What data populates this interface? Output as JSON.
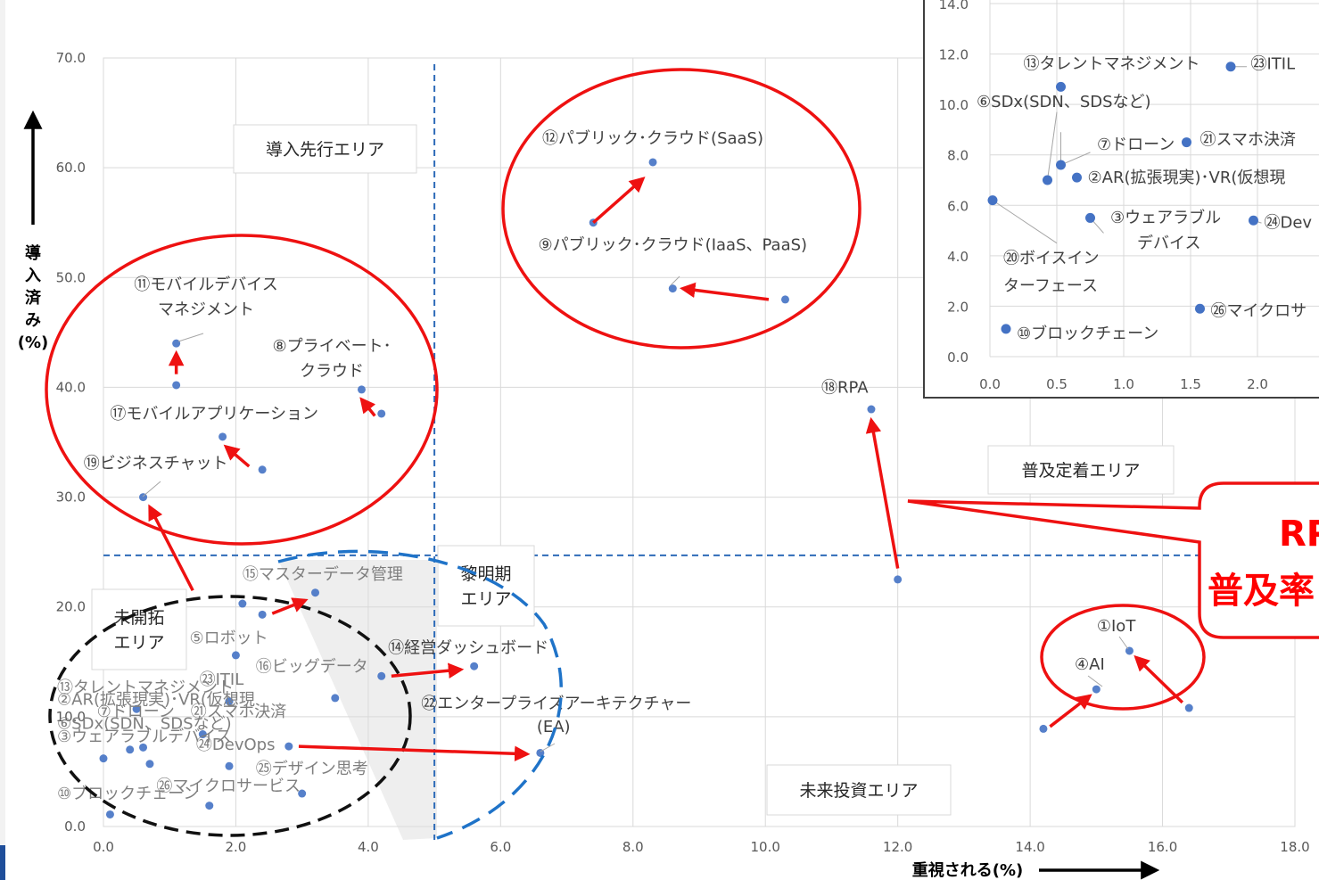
{
  "chart_data": {
    "type": "scatter",
    "xlabel": "重視される(%)",
    "ylabel": "導入済み(%)",
    "xlim": [
      0,
      18
    ],
    "ylim": [
      0,
      70
    ],
    "x_ticks": [
      "0.0",
      "2.0",
      "4.0",
      "6.0",
      "8.0",
      "10.0",
      "12.0",
      "14.0",
      "16.0",
      "18.0"
    ],
    "y_ticks": [
      "0.0",
      "10.0",
      "20.0",
      "30.0",
      "40.0",
      "50.0",
      "60.0",
      "70.0"
    ],
    "threshold_x": 5.0,
    "threshold_y": 24.7,
    "areas": [
      {
        "name": "area-pioneer",
        "text": [
          "導入先行エリア"
        ]
      },
      {
        "name": "area-established",
        "text": [
          "普及定着エリア"
        ]
      },
      {
        "name": "area-dawn",
        "text": [
          "黎明期",
          "エリア"
        ]
      },
      {
        "name": "area-unexplored",
        "text": [
          "未開拓",
          "エリア"
        ]
      },
      {
        "name": "area-future",
        "text": [
          "未来投資エリア"
        ]
      }
    ],
    "points": [
      {
        "x": 8.3,
        "y": 60.5
      },
      {
        "x": 7.4,
        "y": 55.0
      },
      {
        "x": 8.6,
        "y": 49.0
      },
      {
        "x": 10.3,
        "y": 48.0
      },
      {
        "x": 1.1,
        "y": 44.0
      },
      {
        "x": 1.1,
        "y": 40.2
      },
      {
        "x": 3.9,
        "y": 39.8
      },
      {
        "x": 4.2,
        "y": 37.6
      },
      {
        "x": 1.8,
        "y": 35.5
      },
      {
        "x": 2.4,
        "y": 32.5
      },
      {
        "x": 0.6,
        "y": 30.0
      },
      {
        "x": 11.6,
        "y": 38.0
      },
      {
        "x": 12.0,
        "y": 22.5
      },
      {
        "x": 15.5,
        "y": 16.0
      },
      {
        "x": 15.0,
        "y": 12.5
      },
      {
        "x": 16.4,
        "y": 10.8
      },
      {
        "x": 14.2,
        "y": 8.9
      },
      {
        "x": 3.2,
        "y": 21.3
      },
      {
        "x": 2.1,
        "y": 20.3
      },
      {
        "x": 2.4,
        "y": 19.3
      },
      {
        "x": 2.0,
        "y": 15.6
      },
      {
        "x": 5.6,
        "y": 14.6
      },
      {
        "x": 4.2,
        "y": 13.7
      },
      {
        "x": 3.5,
        "y": 11.7
      },
      {
        "x": 1.9,
        "y": 11.4
      },
      {
        "x": 0.5,
        "y": 10.7
      },
      {
        "x": 1.5,
        "y": 8.4
      },
      {
        "x": 2.8,
        "y": 7.3
      },
      {
        "x": 0.6,
        "y": 7.2
      },
      {
        "x": 0.4,
        "y": 7.0
      },
      {
        "x": 6.6,
        "y": 6.7
      },
      {
        "x": 0.0,
        "y": 6.2
      },
      {
        "x": 1.9,
        "y": 5.5
      },
      {
        "x": 0.7,
        "y": 5.7
      },
      {
        "x": 3.0,
        "y": 3.0
      },
      {
        "x": 1.6,
        "y": 1.9
      },
      {
        "x": 0.1,
        "y": 1.1
      }
    ],
    "labels": [
      {
        "text": "⑫パブリック･クラウド(SaaS)",
        "x": 8.3,
        "y": 62.2,
        "anchor": "middle",
        "faded": false
      },
      {
        "text": "⑨パブリック･クラウド(IaaS、PaaS)",
        "x": 8.6,
        "y": 52.5,
        "anchor": "middle",
        "faded": false
      },
      {
        "text": "⑪モバイルデバイス",
        "x": 1.55,
        "y": 48.9,
        "anchor": "middle",
        "faded": false
      },
      {
        "text": "マネジメント",
        "x": 1.55,
        "y": 46.6,
        "anchor": "middle",
        "faded": false
      },
      {
        "text": "⑧プライベート･",
        "x": 3.45,
        "y": 43.3,
        "anchor": "middle",
        "faded": false
      },
      {
        "text": "クラウド",
        "x": 3.45,
        "y": 41.0,
        "anchor": "middle",
        "faded": false
      },
      {
        "text": "⑰モバイルアプリケーション",
        "x": 0.1,
        "y": 37.1,
        "anchor": "start",
        "faded": false
      },
      {
        "text": "⑲ビジネスチャット",
        "x": -0.3,
        "y": 32.6,
        "anchor": "start",
        "faded": false
      },
      {
        "text": "⑱RPA",
        "x": 11.2,
        "y": 39.5,
        "anchor": "middle",
        "faded": false
      },
      {
        "text": "①IoT",
        "x": 15.3,
        "y": 17.8,
        "anchor": "middle",
        "faded": false
      },
      {
        "text": "④AI",
        "x": 14.9,
        "y": 14.3,
        "anchor": "middle",
        "faded": false
      },
      {
        "text": "⑮マスターデータ管理",
        "x": 2.1,
        "y": 22.5,
        "anchor": "start",
        "faded": true
      },
      {
        "text": "⑤ロボット",
        "x": 1.3,
        "y": 16.7,
        "anchor": "start",
        "faded": true
      },
      {
        "text": "⑯ビッグデータ",
        "x": 2.3,
        "y": 14.1,
        "anchor": "start",
        "faded": true
      },
      {
        "text": "⑭経営ダッシュボード",
        "x": 4.3,
        "y": 15.8,
        "anchor": "start",
        "faded": false
      },
      {
        "text": "㉒エンタープライズアーキテクチャー",
        "x": 4.8,
        "y": 10.7,
        "anchor": "start",
        "faded": false
      },
      {
        "text": "(EA)",
        "x": 6.8,
        "y": 8.6,
        "anchor": "middle",
        "faded": false
      },
      {
        "text": "㉓ITIL",
        "x": 1.45,
        "y": 12.9,
        "anchor": "start",
        "faded": true
      },
      {
        "text": "⑬タレントマネジメント",
        "x": -0.7,
        "y": 12.2,
        "anchor": "start",
        "faded": true
      },
      {
        "text": "②AR(拡張現実)･VR(仮想現",
        "x": -0.7,
        "y": 11.1,
        "anchor": "start",
        "faded": true
      },
      {
        "text": "⑦ドローン　㉑スマホ決済",
        "x": -0.1,
        "y": 10.0,
        "anchor": "start",
        "faded": true
      },
      {
        "text": "⑥SDx(SDN、SDSなど)",
        "x": -0.7,
        "y": 8.9,
        "anchor": "start",
        "faded": true
      },
      {
        "text": "③ウェアラブルデバイス",
        "x": -0.7,
        "y": 7.7,
        "anchor": "start",
        "faded": true
      },
      {
        "text": "㉔DevOps",
        "x": 1.4,
        "y": 7.0,
        "anchor": "start",
        "faded": true
      },
      {
        "text": "㉕デザイン思考",
        "x": 2.3,
        "y": 4.8,
        "anchor": "start",
        "faded": true
      },
      {
        "text": "⑩ブロックチェーン",
        "x": -0.7,
        "y": 2.5,
        "anchor": "start",
        "faded": true
      },
      {
        "text": "㉖マイクロサービス",
        "x": 0.8,
        "y": 3.2,
        "anchor": "start",
        "faded": true
      }
    ],
    "arrows": [
      {
        "from": [
          7.4,
          55.0
        ],
        "to": [
          8.15,
          59.0
        ]
      },
      {
        "from": [
          10.05,
          48.0
        ],
        "to": [
          8.75,
          49.0
        ]
      },
      {
        "from": [
          1.1,
          41.2
        ],
        "to": [
          1.1,
          43.1
        ]
      },
      {
        "from": [
          4.1,
          37.4
        ],
        "to": [
          3.9,
          38.9
        ]
      },
      {
        "from": [
          2.2,
          32.8
        ],
        "to": [
          1.85,
          34.6
        ]
      },
      {
        "from": [
          1.35,
          21.5
        ],
        "to": [
          0.7,
          29.1
        ]
      },
      {
        "from": [
          12.0,
          23.5
        ],
        "to": [
          11.6,
          37.0
        ]
      },
      {
        "from": [
          16.3,
          11.3
        ],
        "to": [
          15.6,
          15.4
        ]
      },
      {
        "from": [
          14.3,
          9.1
        ],
        "to": [
          14.9,
          11.9
        ]
      },
      {
        "from": [
          2.55,
          19.4
        ],
        "to": [
          3.05,
          20.6
        ]
      },
      {
        "from": [
          4.35,
          13.7
        ],
        "to": [
          5.4,
          14.3
        ]
      },
      {
        "from": [
          2.95,
          7.3
        ],
        "to": [
          6.4,
          6.6
        ]
      }
    ],
    "callout": {
      "lines": [
        "RP",
        "普及率"
      ]
    },
    "inset": {
      "xlim": [
        0,
        2.5
      ],
      "ylim": [
        0,
        14
      ],
      "x_ticks": [
        "0.0",
        "0.5",
        "1.0",
        "1.5",
        "2.0",
        "2"
      ],
      "y_ticks": [
        "0.0",
        "2.0",
        "4.0",
        "6.0",
        "8.0",
        "10.0",
        "12.0",
        "14.0"
      ],
      "points": [
        {
          "x": 0.53,
          "y": 10.7
        },
        {
          "x": 1.8,
          "y": 11.5
        },
        {
          "x": 0.43,
          "y": 7.0
        },
        {
          "x": 0.53,
          "y": 7.6
        },
        {
          "x": 0.65,
          "y": 7.1
        },
        {
          "x": 1.47,
          "y": 8.5
        },
        {
          "x": 0.02,
          "y": 6.2
        },
        {
          "x": 0.75,
          "y": 5.5
        },
        {
          "x": 1.97,
          "y": 5.4
        },
        {
          "x": 1.57,
          "y": 1.9
        },
        {
          "x": 0.12,
          "y": 1.1
        }
      ],
      "labels": [
        {
          "text": "⑬タレントマネジメント",
          "x": 0.25,
          "y": 11.4
        },
        {
          "text": "㉓ITIL",
          "x": 1.95,
          "y": 11.4
        },
        {
          "text": "⑥SDx(SDN、SDSなど)",
          "x": -0.1,
          "y": 9.9
        },
        {
          "text": "⑦ドローン",
          "x": 0.8,
          "y": 8.2
        },
        {
          "text": "㉑スマホ決済",
          "x": 1.57,
          "y": 8.4
        },
        {
          "text": "②AR(拡張現実)･VR(仮想現",
          "x": 0.73,
          "y": 6.9
        },
        {
          "text": "③ウェアラブル",
          "x": 0.9,
          "y": 5.3
        },
        {
          "text": "㉔Dev",
          "x": 2.05,
          "y": 5.1
        },
        {
          "text": "デバイス",
          "x": 1.1,
          "y": 4.3
        },
        {
          "text": "⑳ボイスイン",
          "x": 0.1,
          "y": 3.7
        },
        {
          "text": "ターフェース",
          "x": 0.1,
          "y": 2.6
        },
        {
          "text": "㉖マイクロサ",
          "x": 1.65,
          "y": 1.6
        },
        {
          "text": "⑩ブロックチェーン",
          "x": 0.2,
          "y": 0.7
        }
      ]
    }
  }
}
